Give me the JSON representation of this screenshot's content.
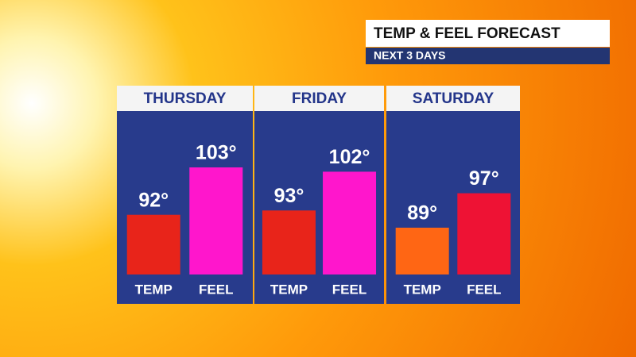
{
  "chart_data": {
    "type": "bar",
    "title": "TEMP & FEEL FORECAST",
    "subtitle": "NEXT 3 DAYS",
    "categories": [
      "THURSDAY",
      "FRIDAY",
      "SATURDAY"
    ],
    "series": [
      {
        "name": "TEMP",
        "values": [
          92,
          93,
          89
        ],
        "value_labels": [
          "92°",
          "93°",
          "89°"
        ],
        "colors": [
          "#e8241a",
          "#e8241a",
          "#ff6614"
        ]
      },
      {
        "name": "FEEL",
        "values": [
          103,
          102,
          97
        ],
        "value_labels": [
          "103°",
          "102°",
          "97°"
        ],
        "colors": [
          "#ff16cc",
          "#ff16cc",
          "#ee1234"
        ]
      }
    ]
  }
}
